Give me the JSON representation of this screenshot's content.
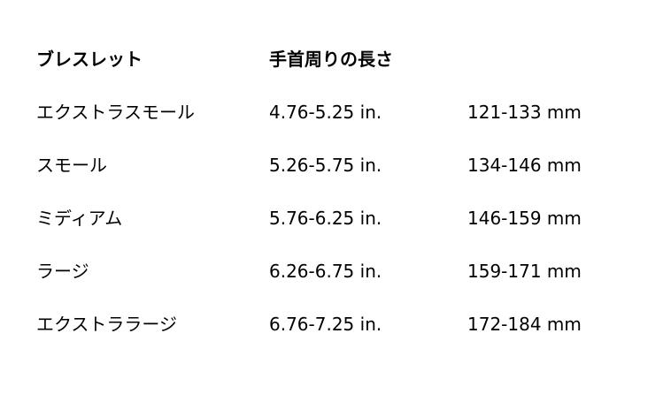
{
  "header": {
    "bracelet": "ブレスレット",
    "wrist_length": "手首周りの長さ"
  },
  "rows": [
    {
      "size": "エクストラスモール",
      "inches": "4.76-5.25 in.",
      "mm": "121-133 mm"
    },
    {
      "size": "スモール",
      "inches": "5.26-5.75 in.",
      "mm": "134-146 mm"
    },
    {
      "size": "ミディアム",
      "inches": "5.76-6.25 in.",
      "mm": "146-159 mm"
    },
    {
      "size": "ラージ",
      "inches": "6.26-6.75 in.",
      "mm": "159-171 mm"
    },
    {
      "size": "エクストララージ",
      "inches": "6.76-7.25 in.",
      "mm": "172-184 mm"
    }
  ]
}
